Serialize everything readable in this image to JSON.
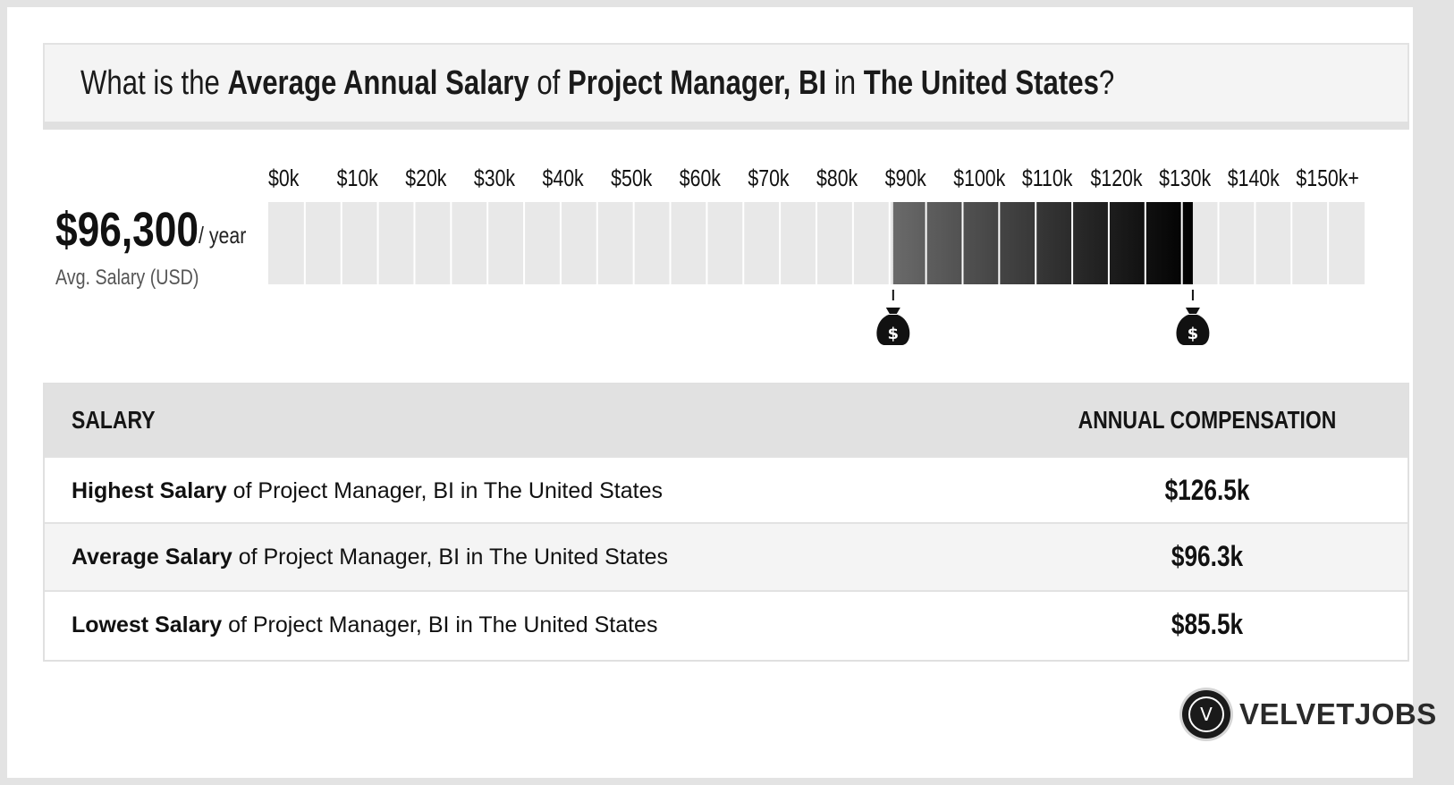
{
  "header": {
    "prefix": "What is the ",
    "bold1": "Average Annual Salary",
    "mid1": " of ",
    "bold2": "Project Manager, BI",
    "mid2": " in ",
    "bold3": "The United States",
    "suffix": "?"
  },
  "average": {
    "value": "$96,300",
    "unit": "/ year",
    "label": "Avg. Salary (USD)"
  },
  "table": {
    "header_left": "SALARY",
    "header_right": "ANNUAL COMPENSATION",
    "rows": [
      {
        "bold": "Highest Salary",
        "rest": " of Project Manager, BI in The United States",
        "value": "$126.5k"
      },
      {
        "bold": "Average Salary",
        "rest": " of Project Manager, BI in The United States",
        "value": "$96.3k"
      },
      {
        "bold": "Lowest Salary",
        "rest": " of Project Manager, BI in The United States",
        "value": "$85.5k"
      }
    ]
  },
  "brand": {
    "logo_letter": "V",
    "name": "VELVETJOBS"
  },
  "chart_data": {
    "type": "bar",
    "orientation": "horizontal-range",
    "tick_labels": [
      "$0k",
      "$10k",
      "$20k",
      "$30k",
      "$40k",
      "$50k",
      "$60k",
      "$70k",
      "$80k",
      "$90k",
      "$100k",
      "$110k",
      "$120k",
      "$130k",
      "$140k",
      "$150k+"
    ],
    "xlim": [
      0,
      150000
    ],
    "range_low": 85500,
    "range_high": 126500,
    "average": 96300,
    "markers": [
      {
        "value": 85500,
        "icon": "money-bag-icon",
        "symbol": "$"
      },
      {
        "value": 126500,
        "icon": "money-bag-icon",
        "symbol": "$"
      }
    ],
    "colors": {
      "empty": "#e8e8e8",
      "range_start": "#6a6a6a",
      "range_end": "#000000",
      "divider": "#ffffff"
    }
  }
}
